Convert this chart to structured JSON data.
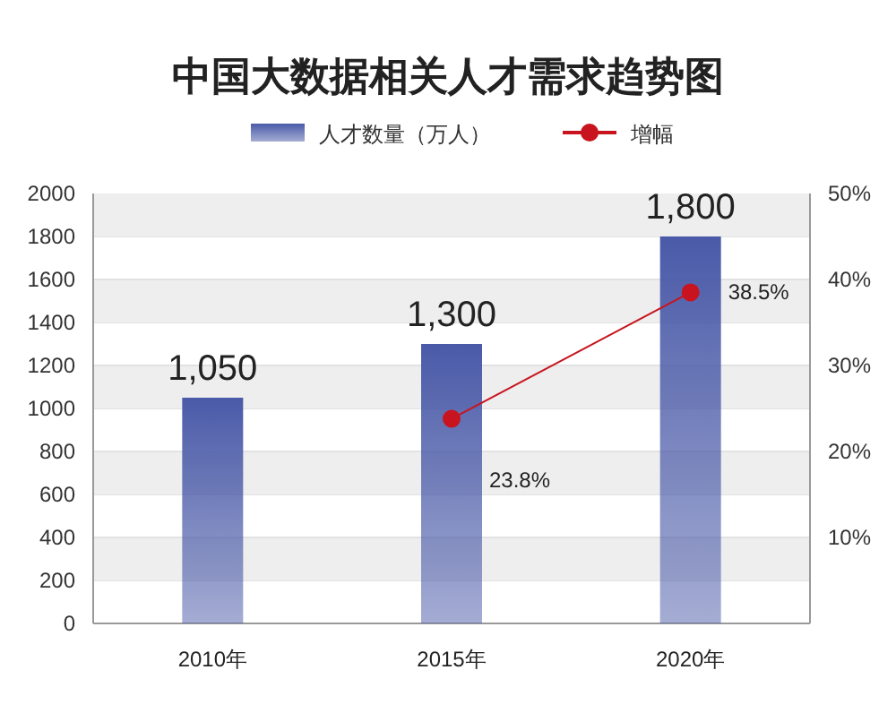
{
  "chart_data": {
    "type": "bar",
    "title": "中国大数据相关人才需求趋势图",
    "categories": [
      "2010年",
      "2015年",
      "2020年"
    ],
    "series": [
      {
        "name": "人才数量（万人）",
        "color": "#4a5aa8",
        "values": [
          1050,
          1300,
          1800
        ],
        "value_labels": [
          "1,050",
          "1,300",
          "1,800"
        ]
      },
      {
        "name": "增幅",
        "type": "line",
        "axis": "y2",
        "color": "#c8141e",
        "marker": "circle",
        "values": [
          null,
          23.8,
          38.5
        ],
        "value_labels": [
          null,
          "23.8%",
          "38.5%"
        ]
      }
    ],
    "ylim": [
      0,
      2000
    ],
    "yticks": [
      0,
      200,
      400,
      600,
      800,
      1000,
      1200,
      1400,
      1600,
      1800,
      2000
    ],
    "y2lim": [
      0,
      50
    ],
    "y2ticks": [
      {
        "value": 10,
        "label": "10%"
      },
      {
        "value": 20,
        "label": "20%"
      },
      {
        "value": 30,
        "label": "30%"
      },
      {
        "value": 40,
        "label": "40%"
      },
      {
        "value": 50,
        "label": "50%"
      }
    ],
    "grid": "y",
    "legend": "top"
  }
}
